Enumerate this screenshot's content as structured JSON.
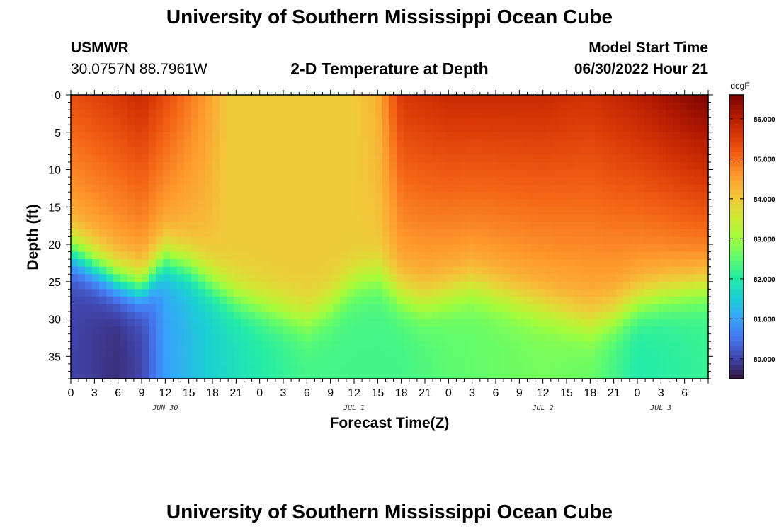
{
  "header": {
    "title": "University of Southern Mississippi Ocean Cube",
    "station": "USMWR",
    "coords": "30.0757N  88.7961W",
    "subtitle": "2-D Temperature at Depth",
    "model_start_label": "Model Start Time",
    "model_start_value": "06/30/2022 Hour 21"
  },
  "footer": {
    "title": "University of Southern Mississippi Ocean Cube"
  },
  "colors": {
    "colormap": [
      "#30123b",
      "#4145ab",
      "#4675ed",
      "#39a2fc",
      "#1bcfd4",
      "#24eca6",
      "#61fc6c",
      "#a4fc3b",
      "#d1e834",
      "#f3c63a",
      "#fe9b2d",
      "#f36315",
      "#d93806",
      "#b11901",
      "#7a0402"
    ]
  },
  "chart_data": {
    "type": "heatmap",
    "title": "2-D Temperature at Depth",
    "xlabel": "Forecast Time(Z)",
    "ylabel": "Depth (ft)",
    "x_hours_range": [
      0,
      81
    ],
    "y_depth_range": [
      0,
      38
    ],
    "x_ticks": [
      {
        "h": 0,
        "label": "0"
      },
      {
        "h": 3,
        "label": "3"
      },
      {
        "h": 6,
        "label": "6"
      },
      {
        "h": 9,
        "label": "9"
      },
      {
        "h": 12,
        "label": "12"
      },
      {
        "h": 15,
        "label": "15"
      },
      {
        "h": 18,
        "label": "18"
      },
      {
        "h": 21,
        "label": "21"
      },
      {
        "h": 24,
        "label": "0"
      },
      {
        "h": 27,
        "label": "3"
      },
      {
        "h": 30,
        "label": "6"
      },
      {
        "h": 33,
        "label": "9"
      },
      {
        "h": 36,
        "label": "12"
      },
      {
        "h": 39,
        "label": "15"
      },
      {
        "h": 42,
        "label": "18"
      },
      {
        "h": 45,
        "label": "21"
      },
      {
        "h": 48,
        "label": "0"
      },
      {
        "h": 51,
        "label": "3"
      },
      {
        "h": 54,
        "label": "6"
      },
      {
        "h": 57,
        "label": "9"
      },
      {
        "h": 60,
        "label": "12"
      },
      {
        "h": 63,
        "label": "15"
      },
      {
        "h": 66,
        "label": "18"
      },
      {
        "h": 69,
        "label": "21"
      },
      {
        "h": 72,
        "label": "0"
      },
      {
        "h": 75,
        "label": "3"
      },
      {
        "h": 78,
        "label": "6"
      }
    ],
    "y_ticks": [
      0,
      5,
      10,
      15,
      20,
      25,
      30,
      35
    ],
    "date_labels": [
      {
        "h": 12,
        "label": "JUN 30"
      },
      {
        "h": 36,
        "label": "JUL 1"
      },
      {
        "h": 60,
        "label": "JUL 2"
      },
      {
        "h": 75,
        "label": "JUL 3"
      }
    ],
    "colorbar": {
      "unit": "degF",
      "min": 79.5,
      "max": 86.6,
      "ticks": [
        80.0,
        81.0,
        82.0,
        83.0,
        84.0,
        85.0,
        86.0
      ],
      "tick_labels": [
        "80.000",
        "81.000",
        "82.000",
        "83.000",
        "84.000",
        "85.000",
        "86.000"
      ]
    },
    "thermocline_depth_ft": [
      {
        "h": 0,
        "d": 21
      },
      {
        "h": 3,
        "d": 23
      },
      {
        "h": 6,
        "d": 25
      },
      {
        "h": 9,
        "d": 26
      },
      {
        "h": 12,
        "d": 22
      },
      {
        "h": 15,
        "d": 23
      },
      {
        "h": 18,
        "d": 25
      },
      {
        "h": 21,
        "d": 27
      },
      {
        "h": 24,
        "d": 28
      },
      {
        "h": 27,
        "d": 29
      },
      {
        "h": 30,
        "d": 30
      },
      {
        "h": 33,
        "d": 28
      },
      {
        "h": 36,
        "d": 25
      },
      {
        "h": 39,
        "d": 24
      },
      {
        "h": 42,
        "d": 27
      },
      {
        "h": 45,
        "d": 28
      },
      {
        "h": 48,
        "d": 27
      },
      {
        "h": 51,
        "d": 26
      },
      {
        "h": 54,
        "d": 27
      },
      {
        "h": 57,
        "d": 28
      },
      {
        "h": 60,
        "d": 29
      },
      {
        "h": 63,
        "d": 30
      },
      {
        "h": 66,
        "d": 31
      },
      {
        "h": 69,
        "d": 30
      },
      {
        "h": 72,
        "d": 28
      },
      {
        "h": 75,
        "d": 27
      },
      {
        "h": 81,
        "d": 26
      }
    ],
    "surface_temp_degF": [
      {
        "h": 0,
        "t": 85.3
      },
      {
        "h": 6,
        "t": 85.6
      },
      {
        "h": 9,
        "t": 85.8
      },
      {
        "h": 13,
        "t": 85.2
      },
      {
        "h": 17,
        "t": 84.6
      },
      {
        "h": 20,
        "t": 84.0
      },
      {
        "h": 36,
        "t": 84.0
      },
      {
        "h": 39,
        "t": 84.3
      },
      {
        "h": 42,
        "t": 85.6
      },
      {
        "h": 48,
        "t": 85.8
      },
      {
        "h": 60,
        "t": 85.8
      },
      {
        "h": 66,
        "t": 85.7
      },
      {
        "h": 72,
        "t": 86.0
      },
      {
        "h": 81,
        "t": 86.6
      }
    ],
    "bottom_temp_degF": [
      {
        "h": 0,
        "t": 80.0
      },
      {
        "h": 6,
        "t": 79.8
      },
      {
        "h": 9,
        "t": 80.0
      },
      {
        "h": 12,
        "t": 81.0
      },
      {
        "h": 18,
        "t": 81.6
      },
      {
        "h": 24,
        "t": 82.0
      },
      {
        "h": 30,
        "t": 82.3
      },
      {
        "h": 36,
        "t": 82.3
      },
      {
        "h": 42,
        "t": 82.3
      },
      {
        "h": 48,
        "t": 82.5
      },
      {
        "h": 54,
        "t": 82.6
      },
      {
        "h": 60,
        "t": 82.7
      },
      {
        "h": 66,
        "t": 82.6
      },
      {
        "h": 72,
        "t": 82.0
      },
      {
        "h": 81,
        "t": 82.2
      }
    ]
  }
}
